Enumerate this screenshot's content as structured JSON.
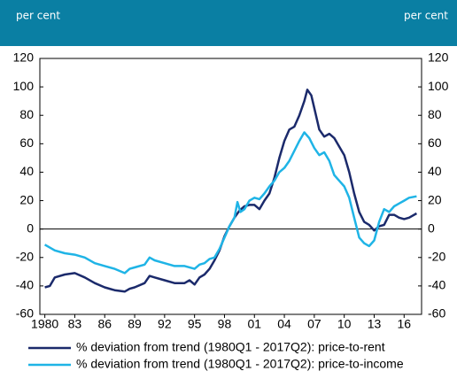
{
  "chart_data": {
    "type": "line",
    "y_label": "per cent",
    "y2_label": "per cent",
    "xlim": [
      1979.5,
      2017.75
    ],
    "xticks": [
      {
        "value": 1980,
        "label": "1980"
      },
      {
        "value": 1983,
        "label": "83"
      },
      {
        "value": 1986,
        "label": "86"
      },
      {
        "value": 1989,
        "label": "89"
      },
      {
        "value": 1992,
        "label": "92"
      },
      {
        "value": 1995,
        "label": "95"
      },
      {
        "value": 1998,
        "label": "98"
      },
      {
        "value": 2001,
        "label": "01"
      },
      {
        "value": 2004,
        "label": "04"
      },
      {
        "value": 2007,
        "label": "07"
      },
      {
        "value": 2010,
        "label": "10"
      },
      {
        "value": 2013,
        "label": "13"
      },
      {
        "value": 2016,
        "label": "16"
      }
    ],
    "ylim": [
      -60,
      120
    ],
    "yticks": [
      -60,
      -40,
      -20,
      0,
      20,
      40,
      60,
      80,
      100,
      120
    ],
    "y2lim": [
      -60,
      120
    ],
    "y2ticks": [
      -60,
      -40,
      -20,
      0,
      20,
      40,
      60,
      80,
      100,
      120
    ],
    "legend": "bottom",
    "series": [
      {
        "name": "% deviation from trend (1980Q1 - 2017Q2): price-to-rent",
        "color": "#1b2a6b",
        "x": [
          1980,
          1980.5,
          1981,
          1982,
          1983,
          1984,
          1985,
          1986,
          1987,
          1988,
          1988.5,
          1989,
          1990,
          1990.5,
          1991,
          1992,
          1993,
          1994,
          1994.5,
          1995,
          1995.5,
          1996,
          1996.5,
          1997,
          1997.5,
          1998,
          1998.5,
          1999,
          1999.5,
          2000,
          2000.5,
          2001,
          2001.5,
          2002,
          2002.5,
          2003,
          2003.5,
          2004,
          2004.5,
          2005,
          2005.5,
          2006,
          2006.3,
          2006.7,
          2007,
          2007.5,
          2008,
          2008.5,
          2009,
          2009.5,
          2010,
          2010.5,
          2011,
          2011.5,
          2012,
          2012.5,
          2013,
          2013.5,
          2014,
          2014.5,
          2015,
          2015.5,
          2016,
          2016.5,
          2017.25
        ],
        "values": [
          -41,
          -40,
          -34,
          -32,
          -31,
          -34,
          -38,
          -41,
          -43,
          -44,
          -42,
          -41,
          -38,
          -33,
          -34,
          -36,
          -38,
          -38,
          -36,
          -39,
          -34,
          -32,
          -28,
          -22,
          -15,
          -5,
          2,
          8,
          13,
          16,
          17,
          17,
          14,
          20,
          25,
          36,
          50,
          62,
          70,
          72,
          80,
          90,
          98,
          94,
          85,
          70,
          65,
          67,
          64,
          58,
          52,
          40,
          25,
          12,
          5,
          3,
          -1,
          2,
          3,
          10,
          10,
          8,
          7,
          8,
          11
        ]
      },
      {
        "name": "% deviation from trend (1980Q1 - 2017Q2): price-to-income",
        "color": "#1fb4e6",
        "x": [
          1980,
          1981,
          1982,
          1983,
          1984,
          1985,
          1986,
          1987,
          1988,
          1988.5,
          1989,
          1990,
          1990.5,
          1991,
          1992,
          1993,
          1994,
          1995,
          1995.5,
          1996,
          1996.5,
          1997,
          1997.5,
          1998,
          1998.5,
          1999,
          1999.3,
          1999.6,
          2000,
          2000.5,
          2001,
          2001.5,
          2002,
          2002.5,
          2003,
          2003.5,
          2004,
          2004.5,
          2005,
          2005.5,
          2006,
          2006.5,
          2007,
          2007.5,
          2008,
          2008.5,
          2009,
          2009.5,
          2010,
          2010.5,
          2011,
          2011.5,
          2012,
          2012.5,
          2013,
          2013.5,
          2014,
          2014.5,
          2015,
          2015.5,
          2016,
          2016.5,
          2017.25
        ],
        "values": [
          -11,
          -15,
          -17,
          -18,
          -20,
          -24,
          -26,
          -28,
          -31,
          -28,
          -27,
          -25,
          -20,
          -22,
          -24,
          -26,
          -26,
          -28,
          -25,
          -24,
          -21,
          -20,
          -14,
          -6,
          2,
          8,
          19,
          12,
          14,
          20,
          22,
          21,
          25,
          30,
          34,
          40,
          43,
          48,
          55,
          62,
          68,
          64,
          57,
          52,
          54,
          48,
          38,
          34,
          30,
          22,
          8,
          -6,
          -10,
          -12,
          -8,
          5,
          14,
          12,
          16,
          18,
          20,
          22,
          23
        ]
      }
    ]
  }
}
